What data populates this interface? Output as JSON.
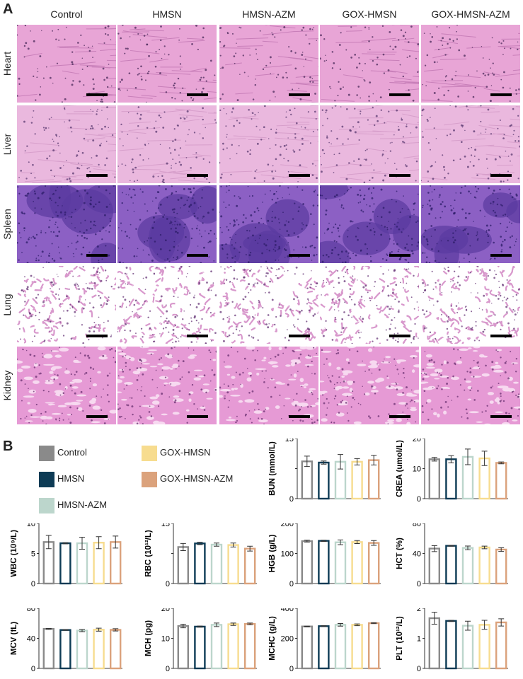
{
  "panel_a": {
    "letter": "A",
    "columns": [
      "Control",
      "HMSN",
      "HMSN-AZM",
      "GOX-HMSN",
      "GOX-HMSN-AZM"
    ],
    "rows": [
      "Heart",
      "Liver",
      "Spleen",
      "Lung",
      "Kidney"
    ]
  },
  "panel_b": {
    "letter": "B",
    "legend": [
      {
        "label": "Control",
        "color": "#8a8a8a"
      },
      {
        "label": "HMSN",
        "color": "#0d3b55"
      },
      {
        "label": "HMSN-AZM",
        "color": "#bcd6cc"
      },
      {
        "label": "GOX-HMSN",
        "color": "#f7dc8f"
      },
      {
        "label": "GOX-HMSN-AZM",
        "color": "#dba27c"
      }
    ]
  },
  "chart_data": [
    {
      "type": "bar",
      "title": "",
      "ylabel": "BUN (mmol/L)",
      "categories": [
        "Control",
        "HMSN",
        "HMSN-AZM",
        "GOX-HMSN",
        "GOX-HMSN-AZM"
      ],
      "values": [
        9.3,
        9.0,
        9.2,
        9.2,
        9.6
      ],
      "errors": [
        1.3,
        0.4,
        1.8,
        0.8,
        1.2
      ],
      "ylim": [
        0,
        15
      ],
      "yticks": [
        "0",
        "",
        "15"
      ]
    },
    {
      "type": "bar",
      "title": "",
      "ylabel": "CREA (umol/L)",
      "categories": [
        "Control",
        "HMSN",
        "HMSN-AZM",
        "GOX-HMSN",
        "GOX-HMSN-AZM"
      ],
      "values": [
        13.1,
        13.1,
        13.9,
        13.4,
        11.9
      ],
      "errors": [
        0.6,
        1.2,
        2.6,
        2.4,
        0.3
      ],
      "ylim": [
        0,
        20
      ],
      "yticks": [
        "0",
        "10",
        "20"
      ]
    },
    {
      "type": "bar",
      "title": "",
      "ylabel": "WBC (10⁹/L)",
      "categories": [
        "Control",
        "HMSN",
        "HMSN-AZM",
        "GOX-HMSN",
        "GOX-HMSN-AZM"
      ],
      "values": [
        6.9,
        6.7,
        6.7,
        6.8,
        6.9
      ],
      "errors": [
        1.1,
        0.1,
        1.0,
        1.0,
        1.0
      ],
      "ylim": [
        0,
        10
      ],
      "yticks": [
        "0",
        "5",
        "10"
      ]
    },
    {
      "type": "bar",
      "title": "",
      "ylabel": "RBC (10¹²/L)",
      "categories": [
        "Control",
        "HMSN",
        "HMSN-AZM",
        "GOX-HMSN",
        "GOX-HMSN-AZM"
      ],
      "values": [
        9.1,
        10.0,
        9.7,
        9.6,
        8.7
      ],
      "errors": [
        0.9,
        0.3,
        0.4,
        0.5,
        0.6
      ],
      "ylim": [
        0,
        15
      ],
      "yticks": [
        "0",
        "",
        "15"
      ]
    },
    {
      "type": "bar",
      "title": "",
      "ylabel": "HGB (g/L)",
      "categories": [
        "Control",
        "HMSN",
        "HMSN-AZM",
        "GOX-HMSN",
        "GOX-HMSN-AZM"
      ],
      "values": [
        141,
        142,
        137,
        138,
        135
      ],
      "errors": [
        3,
        2,
        8,
        5,
        8
      ],
      "ylim": [
        0,
        200
      ],
      "yticks": [
        "0",
        "100",
        "200"
      ]
    },
    {
      "type": "bar",
      "title": "",
      "ylabel": "HCT (%)",
      "categories": [
        "Control",
        "HMSN",
        "HMSN-AZM",
        "GOX-HMSN",
        "GOX-HMSN-AZM"
      ],
      "values": [
        46.5,
        50.2,
        47.4,
        48.0,
        45.2
      ],
      "errors": [
        4.0,
        0.6,
        2.5,
        1.8,
        2.5
      ],
      "ylim": [
        0,
        80
      ],
      "yticks": [
        "0",
        "40",
        "80"
      ]
    },
    {
      "type": "bar",
      "title": "",
      "ylabel": "MCV (fL)",
      "categories": [
        "Control",
        "HMSN",
        "HMSN-AZM",
        "GOX-HMSN",
        "GOX-HMSN-AZM"
      ],
      "values": [
        52.6,
        51.1,
        50.3,
        51.5,
        51.3
      ],
      "errors": [
        0.6,
        0.4,
        1.5,
        2.0,
        1.5
      ],
      "ylim": [
        0,
        80
      ],
      "yticks": [
        "0",
        "40",
        "80"
      ]
    },
    {
      "type": "bar",
      "title": "",
      "ylabel": "MCH (pg)",
      "categories": [
        "Control",
        "HMSN",
        "HMSN-AZM",
        "GOX-HMSN",
        "GOX-HMSN-AZM"
      ],
      "values": [
        14.1,
        13.9,
        14.5,
        14.7,
        14.8
      ],
      "errors": [
        0.6,
        0.2,
        0.6,
        0.4,
        0.3
      ],
      "ylim": [
        0,
        20
      ],
      "yticks": [
        "0",
        "10",
        "20"
      ]
    },
    {
      "type": "bar",
      "title": "",
      "ylabel": "MCHC (g/L)",
      "categories": [
        "Control",
        "HMSN",
        "HMSN-AZM",
        "GOX-HMSN",
        "GOX-HMSN-AZM"
      ],
      "values": [
        279,
        281,
        290,
        290,
        301
      ],
      "errors": [
        2,
        3,
        9,
        6,
        3
      ],
      "ylim": [
        0,
        400
      ],
      "yticks": [
        "0",
        "200",
        "400"
      ]
    },
    {
      "type": "bar",
      "title": "",
      "ylabel": "PLT (10¹²/L)",
      "categories": [
        "Control",
        "HMSN",
        "HMSN-AZM",
        "GOX-HMSN",
        "GOX-HMSN-AZM"
      ],
      "values": [
        1.67,
        1.58,
        1.42,
        1.45,
        1.53
      ],
      "errors": [
        0.2,
        0.02,
        0.15,
        0.15,
        0.12
      ],
      "ylim": [
        0,
        2
      ],
      "yticks": [
        "0",
        "1",
        "2"
      ]
    }
  ],
  "tile_styles": {
    "Heart": {
      "bg": "#e8a5d6",
      "fg": "#c87fb9",
      "dot": "#4a2a5a",
      "dense": 0.25
    },
    "Liver": {
      "bg": "#eab8de",
      "fg": "#d79fcb",
      "dot": "#5a3a70",
      "dense": 0.35
    },
    "Spleen": {
      "bg": "#8c60c4",
      "fg": "#5a3aa0",
      "dot": "#2e1e6a",
      "dense": 0.8
    },
    "Lung": {
      "bg": "#ffffff",
      "fg": "#d898cc",
      "dot": "#6a3a7a",
      "dense": 0.5
    },
    "Kidney": {
      "bg": "#e69ad5",
      "fg": "#f7d9f0",
      "dot": "#6a3070",
      "dense": 0.4
    }
  }
}
